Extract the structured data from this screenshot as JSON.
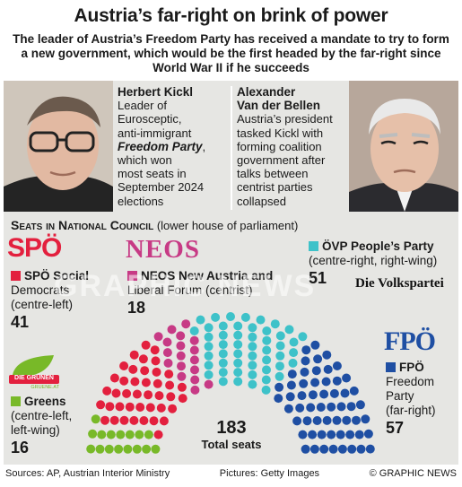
{
  "title": "Austria’s far-right on brink of power",
  "subtitle": "The leader of Austria’s Freedom Party has received a mandate to try to form a new government, which would be the first headed by the far-right since World War II if he succeeds",
  "kickl": {
    "name": "Herbert Kickl",
    "line1": "Leader of",
    "line2": "Eurosceptic,",
    "line3": "anti-immigrant",
    "party_italic": "Freedom Party",
    "line4": "which won",
    "line5": "most seats in",
    "line6": "September 2024",
    "line7": "elections"
  },
  "vdb": {
    "name1": "Alexander",
    "name2": "Van der Bellen",
    "line1": "Austria’s president",
    "line2": "tasked Kickl with",
    "line3": "forming coalition",
    "line4": "government after",
    "line5": "talks between",
    "line6": "centrist parties",
    "line7": "collapsed"
  },
  "seats_heading": "Seats in National Council",
  "seats_heading_note": "(lower house of parliament)",
  "parties": {
    "spo": {
      "logo": "SPÖ",
      "name": "SPÖ Social",
      "name2": "Democrats",
      "desc": "(centre-left)",
      "seats": "41",
      "color": "#e3203e"
    },
    "neos": {
      "logo": "NEOS",
      "name": "NEOS New Austria and",
      "name2": "Liberal Forum (centrist)",
      "seats": "18",
      "color": "#c73a85"
    },
    "ovp": {
      "logo": "Die Volkspartei",
      "name": "ÖVP People’s Party",
      "desc": "(centre-right, right-wing)",
      "seats": "51",
      "color": "#3ec2c9"
    },
    "greens": {
      "logo": "DIE GRÜNEN",
      "logo_sub": "GRUENE.AT",
      "name": "Greens",
      "desc": "(centre-left,",
      "desc2": "left-wing)",
      "seats": "16",
      "color": "#78b928"
    },
    "fpo": {
      "logo": "FPÖ",
      "name": "FPÖ",
      "desc": "Freedom",
      "desc2": "Party",
      "desc3": "(far-right)",
      "seats": "57",
      "color": "#1f4fa3"
    }
  },
  "total": {
    "seats": "183",
    "label": "Total seats"
  },
  "footer": {
    "sources": "Sources: AP, Austrian Interior Ministry",
    "pictures": "Pictures: Getty Images",
    "credit": "© GRAPHIC NEWS"
  },
  "watermark": "GRAPHIC NEWS",
  "chart_data": {
    "type": "parliament",
    "total": 183,
    "series": [
      {
        "name": "Greens",
        "values": [
          16
        ]
      },
      {
        "name": "SPÖ",
        "values": [
          41
        ]
      },
      {
        "name": "NEOS",
        "values": [
          18
        ]
      },
      {
        "name": "ÖVP",
        "values": [
          51
        ]
      },
      {
        "name": "FPÖ",
        "values": [
          57
        ]
      }
    ],
    "colors": [
      "#78b928",
      "#e3203e",
      "#c73a85",
      "#3ec2c9",
      "#1f4fa3"
    ]
  }
}
